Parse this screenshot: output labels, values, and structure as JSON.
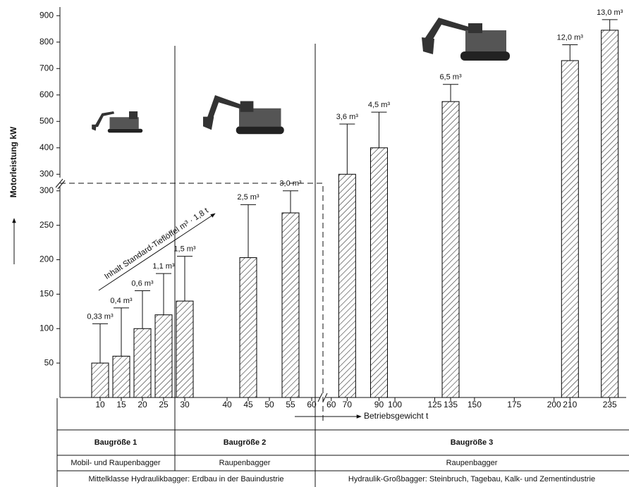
{
  "chart_data": {
    "type": "bar",
    "y_label": "Motorleistung kW",
    "x_label": "Betriebsgewicht t",
    "annotation": "Inhalt Standard-Tieflöffel m³ · 1,8 t",
    "ylim": [
      0,
      310
    ],
    "yticks": [
      50,
      100,
      150,
      200,
      250,
      300
    ],
    "y2lim": [
      290,
      930
    ],
    "y2ticks": [
      300,
      400,
      500,
      600,
      700,
      800,
      900
    ],
    "xaxis": [
      {
        "xlim": [
          0,
          62
        ],
        "xticks": [
          10,
          15,
          20,
          25,
          30,
          40,
          45,
          50,
          55,
          60
        ]
      },
      {
        "xlim": [
          57,
          240
        ],
        "xticks": [
          60,
          70,
          90,
          100,
          125,
          135,
          150,
          175,
          200,
          210,
          235
        ]
      }
    ],
    "color": "#000000",
    "series": [
      {
        "axis": "y",
        "x": [
          10,
          15,
          20,
          25,
          30,
          45,
          55
        ],
        "values": [
          50,
          60,
          100,
          120,
          140,
          203,
          268
        ],
        "maxima": [
          107,
          130,
          155,
          180,
          205,
          280,
          300
        ],
        "bucket_labels": [
          "0,33 m³",
          "0,4 m³",
          "0,6 m³",
          "1,1 m³",
          "1,5 m³",
          "2,5 m³",
          "3,0 m³"
        ]
      },
      {
        "axis": "y2",
        "x": [
          70,
          90,
          135,
          210,
          235
        ],
        "values": [
          300,
          400,
          575,
          730,
          845
        ],
        "maxima": [
          490,
          535,
          640,
          790,
          885
        ],
        "bucket_labels": [
          "3,6 m³",
          "4,5 m³",
          "6,5 m³",
          "12,0 m³",
          "13,0 m³"
        ]
      }
    ]
  },
  "table": {
    "rows": [
      [
        "Baugröße 1",
        "Baugröße 2",
        "Baugröße 3"
      ],
      [
        "Mobil- und Raupenbagger",
        "Raupenbagger",
        "Raupenbagger"
      ],
      [
        "Mittelklasse Hydraulikbagger: Erdbau in der Bauindustrie",
        "Hydraulik-Großbagger: Steinbruch, Tagebau, Kalk- und Zementindustrie"
      ]
    ]
  }
}
